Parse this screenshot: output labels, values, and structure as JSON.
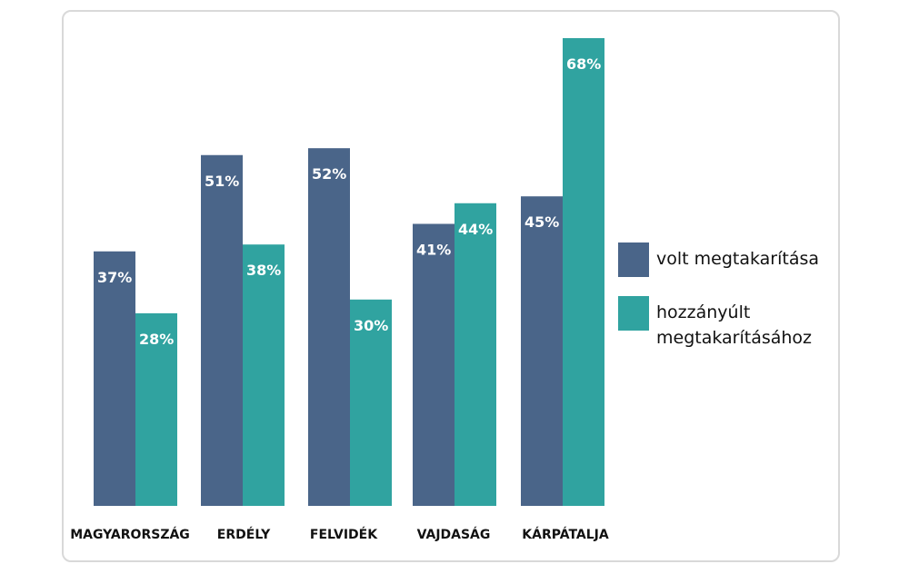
{
  "chart_data": {
    "type": "bar",
    "categories": [
      "MAGYARORSZÁG",
      "ERDÉLY",
      "FELVIDÉK",
      "VAJDASÁG",
      "KÁRPÁTALJA"
    ],
    "series": [
      {
        "name": "volt megtakarítása",
        "values": [
          37,
          51,
          52,
          41,
          45
        ],
        "labels": [
          "37%",
          "51%",
          "52%",
          "41%",
          "45%"
        ],
        "color": "#4a6589"
      },
      {
        "name": "hozzányúlt megtakarításához",
        "values": [
          28,
          38,
          30,
          44,
          68
        ],
        "labels": [
          "28%",
          "38%",
          "30%",
          "44%",
          "68%"
        ],
        "color": "#30a3a0"
      }
    ],
    "ylim": [
      0,
      70
    ],
    "legend": {
      "position": "right",
      "items": [
        {
          "lines": [
            "volt megtakarítása"
          ],
          "color": "#4a6589"
        },
        {
          "lines": [
            "hozzányúlt",
            "megtakarításához"
          ],
          "color": "#30a3a0"
        }
      ]
    },
    "grid": false
  }
}
